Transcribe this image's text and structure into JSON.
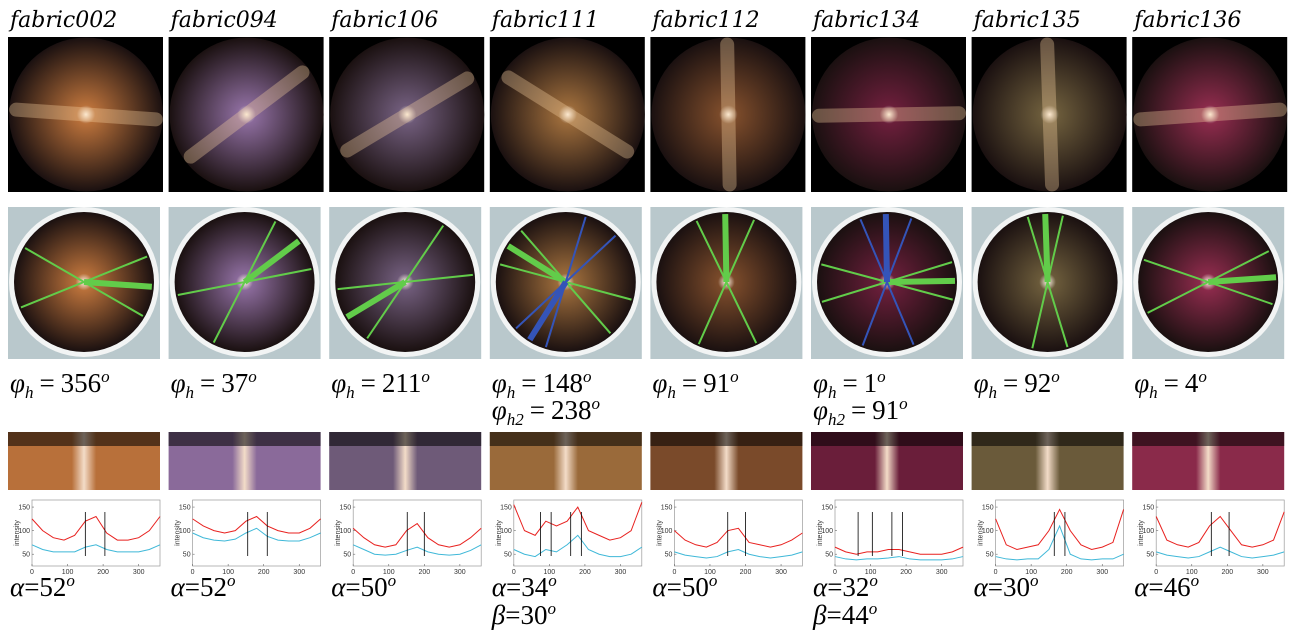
{
  "plot_axes": {
    "xlim": [
      0,
      360
    ],
    "ylim": [
      25,
      165
    ],
    "xticks": [
      0,
      100,
      200,
      300
    ],
    "yticks": [
      50,
      100,
      150
    ],
    "ylabel": "intensity",
    "x": [
      0,
      30,
      60,
      90,
      120,
      150,
      180,
      210,
      240,
      270,
      300,
      330,
      360
    ],
    "colors": [
      "#e8211f",
      "#3fb8d8"
    ]
  },
  "columns": [
    {
      "name": "fabric002",
      "tint": "#b8703a",
      "phi": [
        {
          "symbol": "φ",
          "sub": "h",
          "eq": "=",
          "value": 356,
          "sup": "o"
        }
      ],
      "angles": [
        {
          "symbol": "α",
          "eq": "=",
          "value": 52,
          "sup": "o"
        }
      ],
      "series": [
        [
          125,
          100,
          85,
          80,
          90,
          120,
          130,
          95,
          80,
          80,
          85,
          100,
          130
        ],
        [
          70,
          60,
          55,
          55,
          55,
          65,
          70,
          60,
          55,
          55,
          55,
          60,
          70
        ]
      ],
      "markers": [
        150,
        205
      ]
    },
    {
      "name": "fabric094",
      "tint": "#8a6a9a",
      "phi": [
        {
          "symbol": "φ",
          "sub": "h",
          "eq": "=",
          "value": 37,
          "sup": "o"
        }
      ],
      "angles": [
        {
          "symbol": "α",
          "eq": "=",
          "value": 52,
          "sup": "o"
        }
      ],
      "series": [
        [
          125,
          110,
          100,
          95,
          100,
          120,
          130,
          110,
          100,
          95,
          95,
          105,
          125
        ],
        [
          95,
          85,
          80,
          78,
          82,
          95,
          105,
          88,
          80,
          78,
          78,
          85,
          95
        ]
      ],
      "markers": [
        155,
        210
      ]
    },
    {
      "name": "fabric106",
      "tint": "#6e5a78",
      "phi": [
        {
          "symbol": "φ",
          "sub": "h",
          "eq": "=",
          "value": 211,
          "sup": "o"
        }
      ],
      "angles": [
        {
          "symbol": "α",
          "eq": "=",
          "value": 50,
          "sup": "o"
        }
      ],
      "series": [
        [
          105,
          85,
          70,
          65,
          70,
          100,
          115,
          85,
          70,
          65,
          70,
          85,
          105
        ],
        [
          70,
          60,
          50,
          48,
          50,
          58,
          65,
          55,
          50,
          48,
          50,
          58,
          70
        ]
      ],
      "markers": [
        152,
        200
      ]
    },
    {
      "name": "fabric111",
      "tint": "#9a6a3a",
      "phi": [
        {
          "symbol": "φ",
          "sub": "h",
          "eq": "=",
          "value": 148,
          "sup": "o"
        },
        {
          "symbol": "φ",
          "sub": "h2",
          "eq": "=",
          "value": 238,
          "sup": "o"
        }
      ],
      "angles": [
        {
          "symbol": "α",
          "eq": "=",
          "value": 34,
          "sup": "o"
        },
        {
          "symbol": "β",
          "eq": "=",
          "value": 30,
          "sup": "o"
        }
      ],
      "series": [
        [
          155,
          100,
          90,
          120,
          110,
          120,
          150,
          100,
          90,
          80,
          85,
          100,
          160
        ],
        [
          60,
          50,
          45,
          60,
          55,
          70,
          90,
          60,
          50,
          45,
          45,
          50,
          65
        ]
      ],
      "markers": [
        75,
        105,
        160,
        190
      ]
    },
    {
      "name": "fabric112",
      "tint": "#7a4a2a",
      "phi": [
        {
          "symbol": "φ",
          "sub": "h",
          "eq": "=",
          "value": 91,
          "sup": "o"
        }
      ],
      "angles": [
        {
          "symbol": "α",
          "eq": "=",
          "value": 50,
          "sup": "o"
        }
      ],
      "series": [
        [
          100,
          80,
          70,
          65,
          75,
          100,
          105,
          75,
          70,
          65,
          70,
          80,
          95
        ],
        [
          55,
          48,
          45,
          42,
          45,
          55,
          60,
          50,
          45,
          42,
          45,
          48,
          55
        ]
      ],
      "markers": [
        150,
        200
      ]
    },
    {
      "name": "fabric134",
      "tint": "#6a1e3a",
      "phi": [
        {
          "symbol": "φ",
          "sub": "h",
          "eq": "=",
          "value": 1,
          "sup": "o"
        },
        {
          "symbol": "φ",
          "sub": "h2",
          "eq": "=",
          "value": 91,
          "sup": "o"
        }
      ],
      "angles": [
        {
          "symbol": "α",
          "eq": "=",
          "value": 32,
          "sup": "o"
        },
        {
          "symbol": "β",
          "eq": "=",
          "value": 44,
          "sup": "o"
        }
      ],
      "series": [
        [
          65,
          55,
          50,
          55,
          55,
          60,
          60,
          55,
          50,
          50,
          50,
          55,
          65
        ],
        [
          45,
          40,
          38,
          40,
          40,
          42,
          45,
          40,
          38,
          38,
          38,
          40,
          45
        ]
      ],
      "markers": [
        65,
        105,
        160,
        190
      ]
    },
    {
      "name": "fabric135",
      "tint": "#6a5a3a",
      "phi": [
        {
          "symbol": "φ",
          "sub": "h",
          "eq": "=",
          "value": 92,
          "sup": "o"
        }
      ],
      "angles": [
        {
          "symbol": "α",
          "eq": "=",
          "value": 30,
          "sup": "o"
        }
      ],
      "series": [
        [
          125,
          70,
          60,
          65,
          70,
          100,
          145,
          100,
          70,
          60,
          65,
          75,
          145
        ],
        [
          45,
          40,
          38,
          40,
          40,
          60,
          110,
          50,
          40,
          38,
          40,
          40,
          50
        ]
      ],
      "markers": [
        165,
        195
      ]
    },
    {
      "name": "fabric136",
      "tint": "#8a2a4a",
      "phi": [
        {
          "symbol": "φ",
          "sub": "h",
          "eq": "=",
          "value": 4,
          "sup": "o"
        }
      ],
      "angles": [
        {
          "symbol": "α",
          "eq": "=",
          "value": 46,
          "sup": "o"
        }
      ],
      "series": [
        [
          130,
          80,
          70,
          65,
          75,
          110,
          130,
          100,
          70,
          65,
          70,
          80,
          140
        ],
        [
          55,
          48,
          45,
          42,
          45,
          55,
          65,
          55,
          45,
          42,
          45,
          48,
          55
        ]
      ],
      "markers": [
        155,
        205
      ]
    }
  ]
}
